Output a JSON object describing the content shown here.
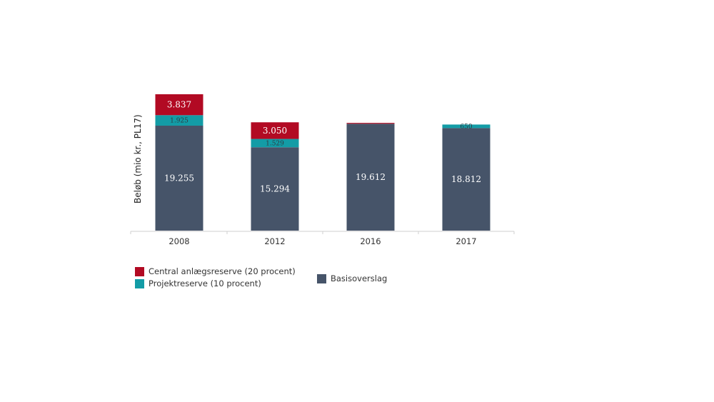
{
  "chart_data": {
    "type": "bar",
    "stacked": true,
    "ylabel": "Beløb (mio kr., PL17)",
    "categories": [
      "2008",
      "2012",
      "2016",
      "2017"
    ],
    "series": [
      {
        "name": "Basisoverslag",
        "color": "#465469",
        "values": [
          19255,
          15294,
          19612,
          18812
        ],
        "labels": [
          "19.255",
          "15.294",
          "19.612",
          "18.812"
        ]
      },
      {
        "name": "Projektreserve (10 procent)",
        "color": "#139ca6",
        "values": [
          1925,
          1529,
          0,
          650
        ],
        "labels": [
          "1.925",
          "1.529",
          "",
          "650"
        ]
      },
      {
        "name": "Central anlægsreserve (20 procent)",
        "color": "#b20a23",
        "values": [
          3837,
          3050,
          150,
          0
        ],
        "labels": [
          "3.837",
          "3.050",
          "",
          ""
        ]
      }
    ],
    "ylim": [
      0,
      25017
    ],
    "grid": false,
    "legend_position": "bottom-left"
  }
}
